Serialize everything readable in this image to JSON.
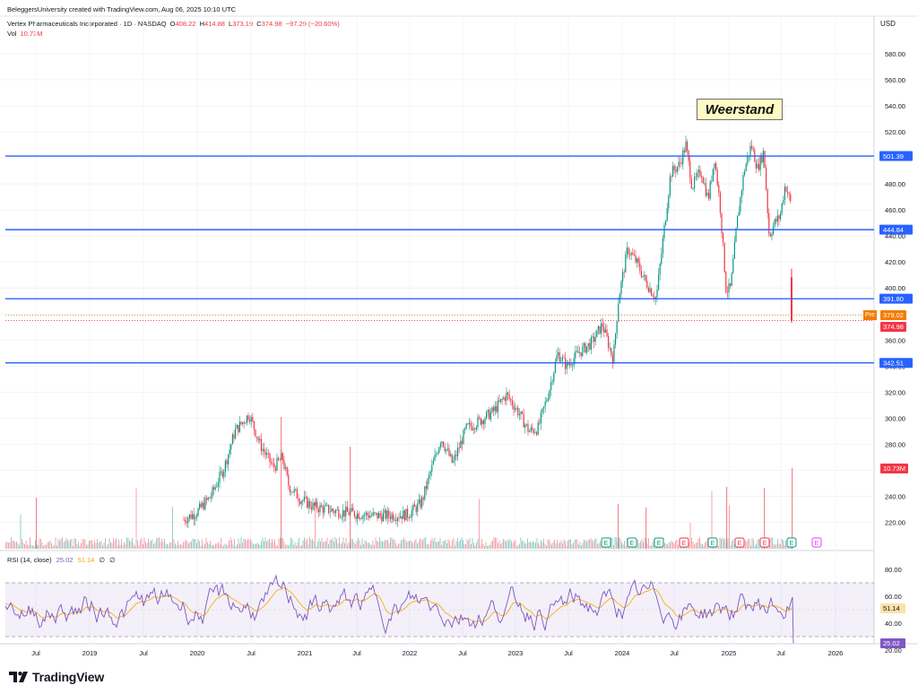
{
  "header": {
    "credit": "BeleggersUniversity created with TradingView.com, Aug 06, 2025 10:10 UTC",
    "symbol": "Vertex Pharmaceuticals Incorporated · 1D · NASDAQ",
    "ohlc": {
      "open_label": "O",
      "open": "408.22",
      "high_label": "H",
      "high": "414.88",
      "low_label": "L",
      "low": "373.19",
      "close_label": "C",
      "close": "374.98",
      "change": "−97.29 (−20.60%)"
    },
    "vol_label": "Vol",
    "vol_value": "10.73M"
  },
  "currency": "USD",
  "annotation": "Weerstand",
  "price_axis": {
    "ticks": [
      "580.00",
      "560.00",
      "540.00",
      "520.00",
      "500.00",
      "480.00",
      "460.00",
      "440.00",
      "420.00",
      "400.00",
      "380.00",
      "360.00",
      "340.00",
      "320.00",
      "300.00",
      "280.00",
      "260.00",
      "240.00",
      "220.00"
    ]
  },
  "levels": {
    "color": "#2962ff",
    "values": [
      501.39,
      444.84,
      391.8,
      342.51
    ],
    "labels": [
      "501.39",
      "444.84",
      "391.80",
      "342.51"
    ]
  },
  "tags": {
    "pre_label": "Pre",
    "pre_value": "379.02",
    "last_value": "374.98",
    "vol_tag": "10.73M",
    "rsi_tag": "25.02",
    "rsi_ma_tag": "51.14"
  },
  "rsi": {
    "legend_name": "RSI (14, close)",
    "value": "25.02",
    "ma": "51.14",
    "extra": "∅",
    "ticks": [
      "80.00",
      "60.00",
      "40.00",
      "20.00"
    ],
    "band_upper": 70,
    "band_lower": 30,
    "line_color": "#7e57c2",
    "ma_color": "#f7a600"
  },
  "time_axis": {
    "labels": [
      "Jul",
      "2019",
      "Jul",
      "2020",
      "Jul",
      "2021",
      "Jul",
      "2022",
      "Jul",
      "2023",
      "Jul",
      "2024",
      "Jul",
      "2025",
      "Jul",
      "2026"
    ]
  },
  "events": {
    "labels": [
      "E",
      "E",
      "E",
      "E",
      "E",
      "E",
      "E",
      "E",
      "E"
    ],
    "colors": [
      "#089981",
      "#089981",
      "#089981",
      "#f23645",
      "#089981",
      "#f23645",
      "#f23645",
      "#089981",
      "#e040fb"
    ]
  },
  "colors": {
    "up": "#089981",
    "down": "#f23645",
    "pre": "#f57c00"
  },
  "brand": "TradingView"
}
